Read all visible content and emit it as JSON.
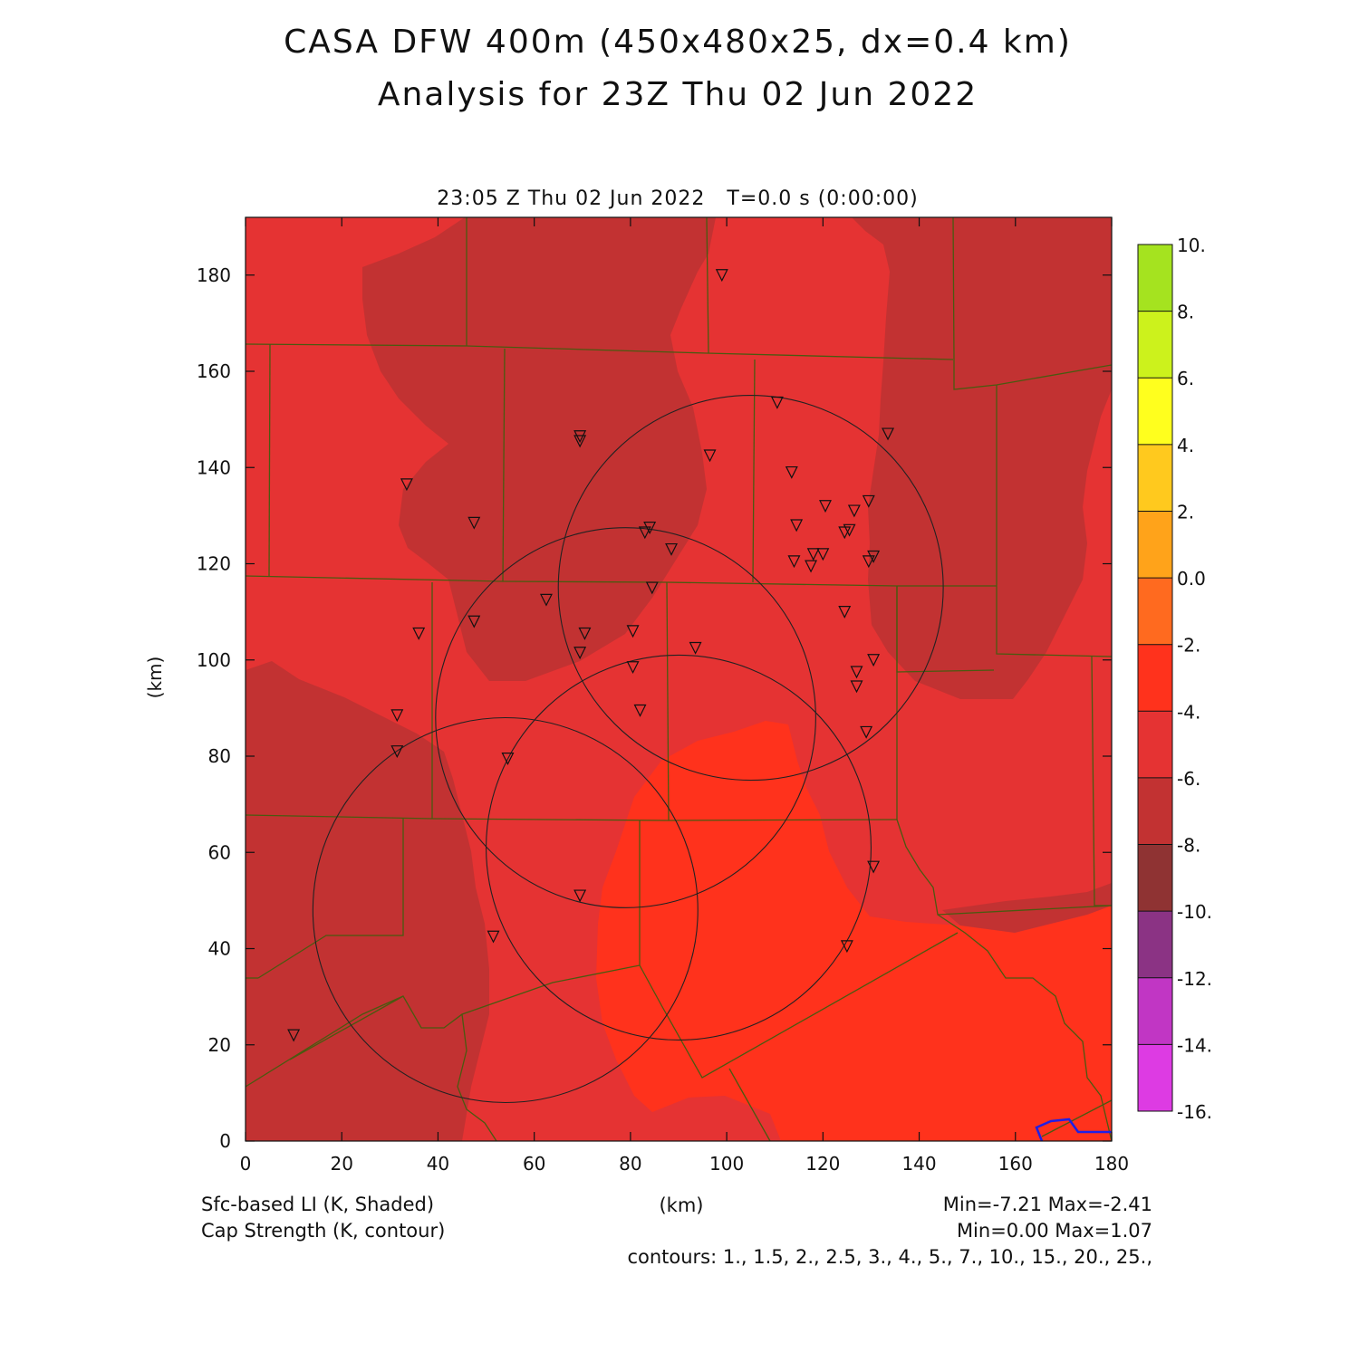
{
  "title_line1": "CASA DFW 400m (450x480x25, dx=0.4 km)",
  "title_line2": "Analysis for 23Z Thu 02 Jun 2022",
  "time_label": "23:05 Z Thu 02 Jun 2022   T=0.0 s (0:00:00)",
  "footer": {
    "left_line1": "Sfc-based LI (K, Shaded)",
    "left_line2": "Cap Strength (K, contour)",
    "center_unit": "(km)",
    "right_line1": "Min=-7.21 Max=-2.41",
    "right_line2": "Min=0.00 Max=1.07",
    "contours_line": "contours: 1., 1.5, 2., 2.5, 3., 4., 5., 7., 10., 15., 20., 25.,"
  },
  "chart_data": {
    "type": "heatmap",
    "title": "CASA DFW 400m (450x480x25, dx=0.4 km)",
    "subtitle": "Analysis for 23Z Thu 02 Jun 2022",
    "xlabel": "",
    "ylabel": "(km)",
    "xlim": [
      0,
      180
    ],
    "ylim": [
      0,
      192
    ],
    "xticks": [
      0,
      20,
      40,
      60,
      80,
      100,
      120,
      140,
      160,
      180
    ],
    "yticks": [
      0,
      20,
      40,
      60,
      80,
      100,
      120,
      140,
      160,
      180
    ],
    "shaded_field": "Sfc-based LI (K, Shaded)",
    "contour_field": "Cap Strength (K, contour)",
    "shaded_min": -7.21,
    "shaded_max": -2.41,
    "contour_min": 0.0,
    "contour_max": 1.07,
    "contour_levels": [
      1,
      1.5,
      2,
      2.5,
      3,
      4,
      5,
      7,
      10,
      15,
      20,
      25
    ],
    "colorbar": {
      "labels": [
        "10.",
        "8.",
        "6.",
        "4.",
        "2.",
        "0.0",
        "-2.",
        "-4.",
        "-6.",
        "-8.",
        "-10.",
        "-12.",
        "-14.",
        "-16."
      ],
      "colors": [
        "#a5e31f",
        "#ccf21c",
        "#ffff1e",
        "#ffc91e",
        "#ffa31a",
        "#ff6a1f",
        "#ff321c",
        "#e53333",
        "#c23232",
        "#8f3333",
        "#8b3384",
        "#c136c4",
        "#dd3be3"
      ]
    },
    "field_colors": {
      "lt_-6": "#c23232",
      "-6_to_-4": "#e53333",
      "-4_to_-2": "#ff321c",
      "boundary": "#4a5a10",
      "water": "#1f1fe6",
      "contour": "#222222"
    },
    "radar_circles_km": [
      {
        "cx": 105,
        "cy": 115,
        "r": 40
      },
      {
        "cx": 79,
        "cy": 88,
        "r": 39.5
      },
      {
        "cx": 90,
        "cy": 61,
        "r": 40
      },
      {
        "cx": 54,
        "cy": 48,
        "r": 40
      }
    ],
    "stations_km": [
      [
        99,
        180
      ],
      [
        110.5,
        153.5
      ],
      [
        133.5,
        147
      ],
      [
        69.5,
        146.5
      ],
      [
        69.5,
        145.5
      ],
      [
        96.5,
        142.5
      ],
      [
        33.5,
        136.5
      ],
      [
        113.5,
        139
      ],
      [
        129.5,
        133
      ],
      [
        120.5,
        132
      ],
      [
        126.5,
        131
      ],
      [
        47.5,
        128.5
      ],
      [
        114.5,
        128
      ],
      [
        84,
        127.5
      ],
      [
        83,
        126.5
      ],
      [
        125.5,
        127
      ],
      [
        124.5,
        126.5
      ],
      [
        88.5,
        123
      ],
      [
        118,
        122
      ],
      [
        120,
        122
      ],
      [
        130.5,
        121.5
      ],
      [
        129.5,
        120.5
      ],
      [
        114,
        120.5
      ],
      [
        117.5,
        119.5
      ],
      [
        84.5,
        115
      ],
      [
        62.5,
        112.5
      ],
      [
        124.5,
        110
      ],
      [
        47.5,
        108
      ],
      [
        36,
        105.5
      ],
      [
        70.5,
        105.5
      ],
      [
        80.5,
        106
      ],
      [
        69.5,
        101.5
      ],
      [
        93.5,
        102.5
      ],
      [
        130.5,
        100
      ],
      [
        80.5,
        98.5
      ],
      [
        127,
        97.5
      ],
      [
        127,
        94.5
      ],
      [
        31.5,
        88.5
      ],
      [
        82,
        89.5
      ],
      [
        129,
        85
      ],
      [
        31.5,
        81
      ],
      [
        54.5,
        79.5
      ],
      [
        130.5,
        57
      ],
      [
        69.5,
        51
      ],
      [
        51.5,
        42.5
      ],
      [
        125,
        40.5
      ],
      [
        10,
        22
      ]
    ]
  }
}
